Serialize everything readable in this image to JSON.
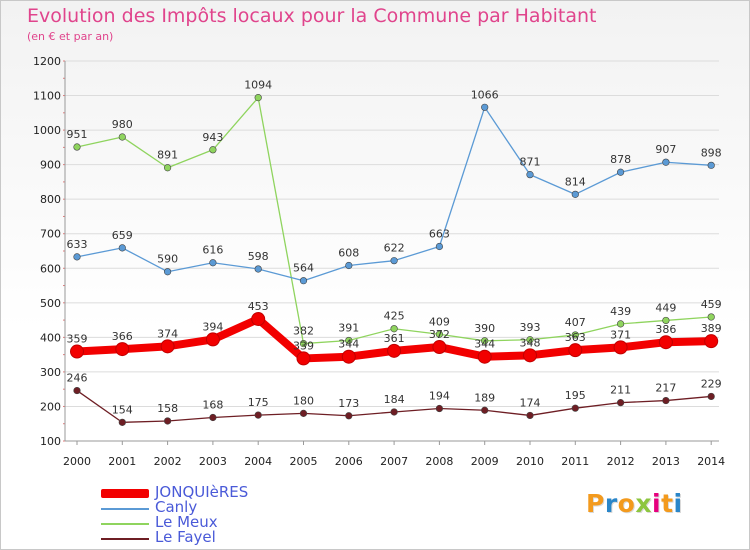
{
  "header": {
    "title": "Evolution des Impôts locaux pour la Commune par Habitant",
    "subtitle": "(en € et par an)"
  },
  "chart_data": {
    "type": "line",
    "title": "Evolution des Impôts locaux pour la Commune par Habitant",
    "subtitle": "(en € et par an)",
    "xlabel": "",
    "ylabel": "",
    "categories": [
      "2000",
      "2001",
      "2002",
      "2003",
      "2004",
      "2005",
      "2006",
      "2007",
      "2008",
      "2009",
      "2010",
      "2011",
      "2012",
      "2013",
      "2014"
    ],
    "ylim": [
      100,
      1200
    ],
    "yticks": [
      100,
      200,
      300,
      400,
      500,
      600,
      700,
      800,
      900,
      1000,
      1100,
      1200
    ],
    "grid": true,
    "legend_position": "bottom-left",
    "series": [
      {
        "name": "Le Fayel",
        "color": "#6e1e24",
        "values": [
          246,
          154,
          158,
          168,
          175,
          180,
          173,
          184,
          194,
          189,
          174,
          195,
          211,
          217,
          229
        ]
      },
      {
        "name": "Le Meux",
        "color": "#8fd45e",
        "values": [
          951,
          980,
          891,
          943,
          1094,
          382,
          391,
          425,
          409,
          390,
          393,
          407,
          439,
          449,
          459
        ]
      },
      {
        "name": "Canly",
        "color": "#5b9ad5",
        "values": [
          633,
          659,
          590,
          616,
          598,
          564,
          608,
          622,
          663,
          1066,
          871,
          814,
          878,
          907,
          898
        ]
      },
      {
        "name": "JONQUIèRES",
        "color": "#f20000",
        "values": [
          359,
          366,
          374,
          394,
          453,
          339,
          344,
          361,
          372,
          344,
          348,
          363,
          371,
          386,
          389
        ]
      }
    ]
  },
  "legend": {
    "items": [
      {
        "label": "JONQUIèRES",
        "color": "#f20000"
      },
      {
        "label": "Canly",
        "color": "#5b9ad5"
      },
      {
        "label": "Le Meux",
        "color": "#8fd45e"
      },
      {
        "label": "Le Fayel",
        "color": "#6e1e24"
      }
    ]
  },
  "logo": {
    "letters": [
      "P",
      "r",
      "o",
      "x",
      "i",
      "t",
      "i"
    ],
    "colors": [
      "#f39a1d",
      "#2a86c9",
      "#f39a1d",
      "#8dc63f",
      "#e6007e",
      "#f39a1d",
      "#2a86c9"
    ]
  }
}
